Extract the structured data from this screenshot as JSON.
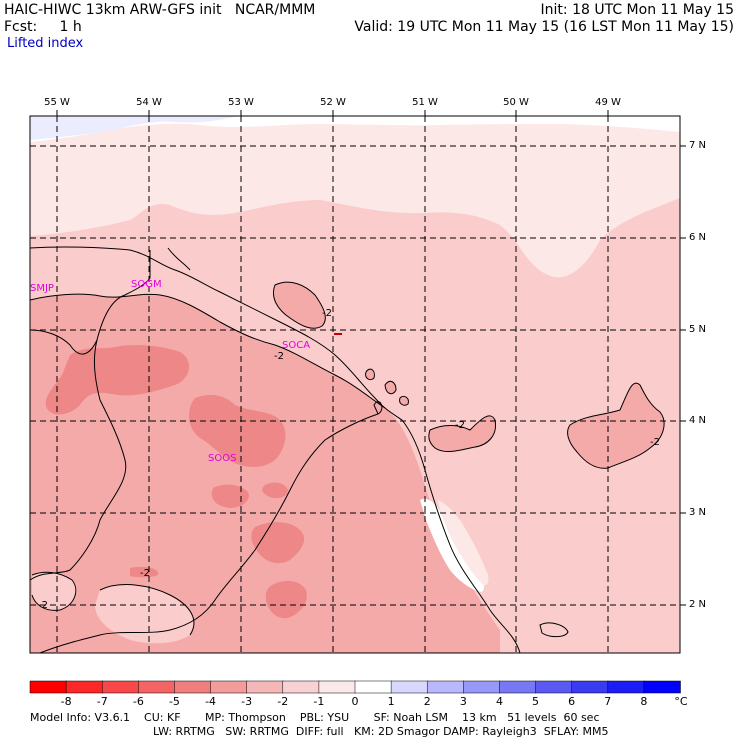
{
  "header": {
    "left_line1": "HAIC-HIWC 13km ARW-GFS init   NCAR/MMM",
    "left_line2": "Fcst:     1 h",
    "field": "Lifted index",
    "right_line1": "Init: 18 UTC Mon 11 May 15",
    "right_line2": "Valid: 19 UTC Mon 11 May 15 (16 LST Mon 11 May 15)"
  },
  "map": {
    "lon_labels": [
      "55 W",
      "54 W",
      "53 W",
      "52 W",
      "51 W",
      "50 W",
      "49 W"
    ],
    "lat_labels": [
      "7 N",
      "6 N",
      "5 N",
      "4 N",
      "3 N",
      "2 N"
    ],
    "stations": [
      "SMJP",
      "SOGM",
      "SOCA",
      "SOOS"
    ],
    "contour_labels": [
      "-2",
      "-2",
      "-2",
      "-2",
      "-2",
      "-2"
    ],
    "colors": {
      "light_blue": "#ececff",
      "white": "#ffffff",
      "pale_pink": "#fde8e8",
      "light_pink": "#fbcccc",
      "pink": "#f5aaaa",
      "salmon": "#ee8888"
    }
  },
  "colorbar": {
    "ticks": [
      "-8",
      "-7",
      "-6",
      "-5",
      "-4",
      "-3",
      "-2",
      "-1",
      "0",
      "1",
      "2",
      "3",
      "4",
      "5",
      "6",
      "7",
      "8"
    ],
    "unit": "°C",
    "colors": [
      "#ff0000",
      "#fc2828",
      "#f84848",
      "#f46464",
      "#f07e7e",
      "#f29c9c",
      "#f5b8b8",
      "#f8d2d2",
      "#fbe8e8",
      "#ffffff",
      "#d8d8ff",
      "#b8b8fc",
      "#9898f8",
      "#7878f4",
      "#5a5af2",
      "#3a3af0",
      "#1c1cf6",
      "#0000ff"
    ]
  },
  "footer": {
    "line1": "Model Info: V3.6.1    CU: KF       MP: Thompson    PBL: YSU       SF: Noah LSM    13 km   51 levels  60 sec",
    "line2": "LW: RRTMG   SW: RRTMG  DIFF: full   KM: 2D Smagor DAMP: Rayleigh3  SFLAY: MM5"
  }
}
